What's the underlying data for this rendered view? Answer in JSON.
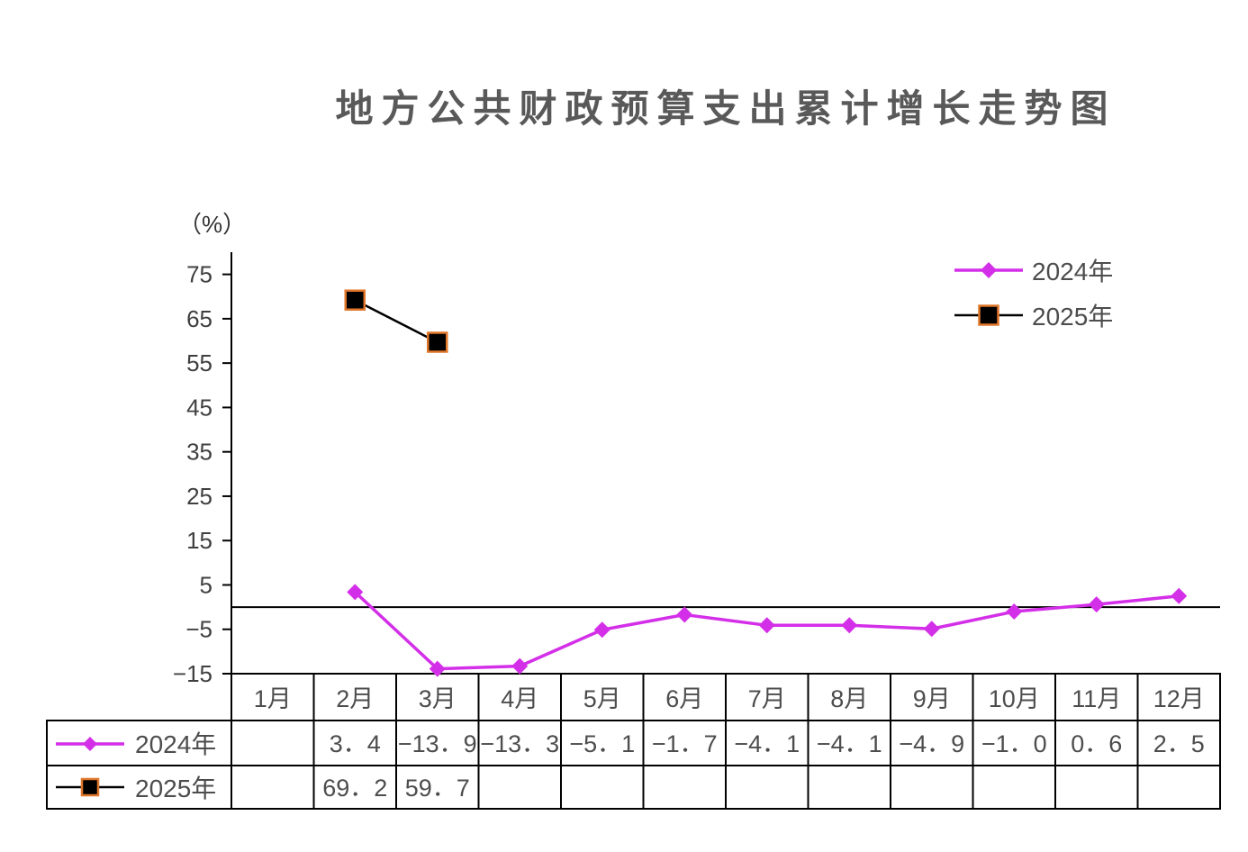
{
  "chart_data": {
    "type": "line",
    "title": "地方公共财政预算支出累计增长走势图",
    "xlabel": "",
    "ylabel": "（%）",
    "categories": [
      "1月",
      "2月",
      "3月",
      "4月",
      "5月",
      "6月",
      "7月",
      "8月",
      "9月",
      "10月",
      "11月",
      "12月"
    ],
    "series": [
      {
        "name": "2024年",
        "values": [
          null,
          3.4,
          -13.9,
          -13.3,
          -5.1,
          -1.7,
          -4.1,
          -4.1,
          -4.9,
          -1.0,
          0.6,
          2.5
        ],
        "color": "#D42FE8",
        "marker": "diamond"
      },
      {
        "name": "2025年",
        "values": [
          null,
          69.2,
          59.7,
          null,
          null,
          null,
          null,
          null,
          null,
          null,
          null,
          null
        ],
        "color": "#000000",
        "marker": "square",
        "marker_edge_color": "#E0762A"
      }
    ],
    "ylim": [
      -15,
      80
    ],
    "yticks": [
      75,
      65,
      55,
      45,
      35,
      25,
      15,
      5,
      -5,
      -15
    ],
    "zero_line": true,
    "grid": false,
    "legend": "top-right",
    "data_table": true
  }
}
